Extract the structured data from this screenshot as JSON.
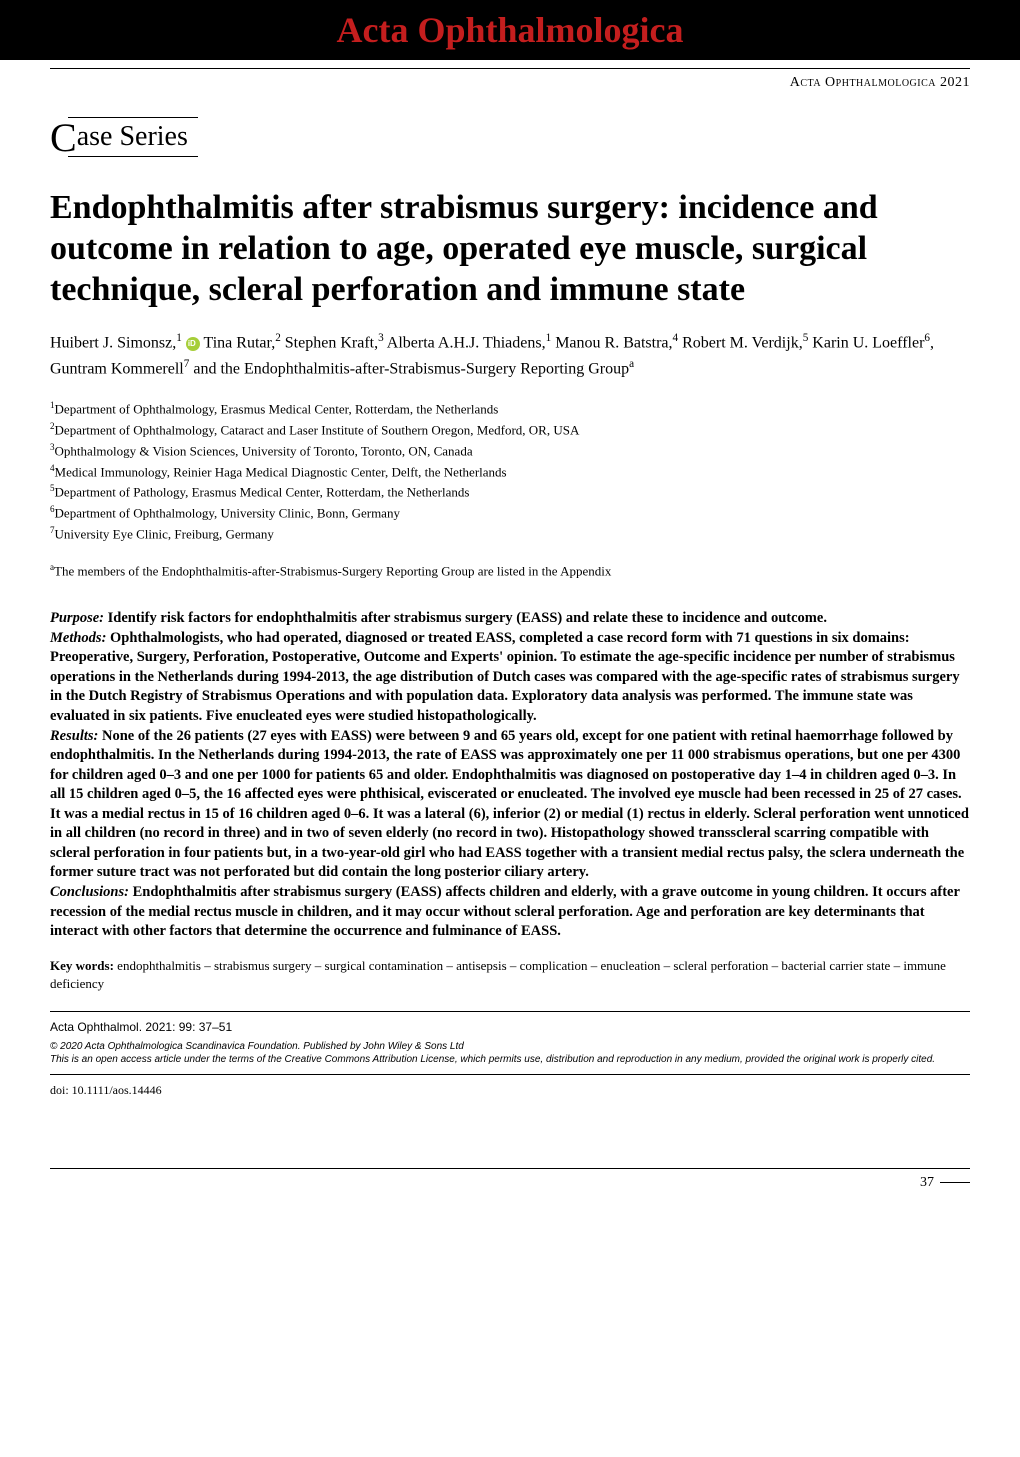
{
  "banner": {
    "text": "Acta Ophthalmologica"
  },
  "journal_header": "Acta Ophthalmologica 2021",
  "section_label": {
    "dropcap": "C",
    "rest": "ase Series"
  },
  "title": "Endophthalmitis after strabismus surgery: incidence and outcome in relation to age, operated eye muscle, surgical technique, scleral perforation and immune state",
  "authors_html": "Huibert J. Simonsz,<sup>1</sup> <span class='orcid'></span> Tina Rutar,<sup>2</sup> Stephen Kraft,<sup>3</sup> Alberta A.H.J. Thiadens,<sup>1</sup> Manou R. Batstra,<sup>4</sup> Robert M. Verdijk,<sup>5</sup> Karin U. Loeffler<sup>6</sup>, Guntram Kommerell<sup>7</sup> and the Endophthalmitis-after-Strabismus-Surgery Reporting Group<sup>a</sup>",
  "affiliations": [
    "<sup>1</sup>Department of Ophthalmology, Erasmus Medical Center, Rotterdam, the Netherlands",
    "<sup>2</sup>Department of Ophthalmology, Cataract and Laser Institute of Southern Oregon, Medford, OR, USA",
    "<sup>3</sup>Ophthalmology & Vision Sciences, University of Toronto, Toronto, ON, Canada",
    "<sup>4</sup>Medical Immunology, Reinier Haga Medical Diagnostic Center, Delft, the Netherlands",
    "<sup>5</sup>Department of Pathology, Erasmus Medical Center, Rotterdam, the Netherlands",
    "<sup>6</sup>Department of Ophthalmology, University Clinic, Bonn, Germany",
    "<sup>7</sup>University Eye Clinic, Freiburg, Germany"
  ],
  "group_note": "<sup>a</sup>The members of the Endophthalmitis-after-Strabismus-Surgery Reporting Group are listed in the Appendix",
  "abstract": {
    "purpose": {
      "heading": "Purpose:",
      "text": " Identify risk factors for endophthalmitis after strabismus surgery (EASS) and relate these to incidence and outcome."
    },
    "methods": {
      "heading": "Methods:",
      "text": " Ophthalmologists, who had operated, diagnosed or treated EASS, completed a case record form with 71 questions in six domains: Preoperative, Surgery, Perforation, Postoperative, Outcome and Experts' opinion. To estimate the age-specific incidence per number of strabismus operations in the Netherlands during 1994-2013, the age distribution of Dutch cases was compared with the age-specific rates of strabismus surgery in the Dutch Registry of Strabismus Operations and with population data. Exploratory data analysis was performed. The immune state was evaluated in six patients. Five enucleated eyes were studied histopathologically."
    },
    "results": {
      "heading": "Results:",
      "text": " None of the 26 patients (27 eyes with EASS) were between 9 and 65 years old, except for one patient with retinal haemorrhage followed by endophthalmitis. In the Netherlands during 1994-2013, the rate of EASS was approximately one per 11 000 strabismus operations, but one per 4300 for children aged 0–3 and one per 1000 for patients 65 and older. Endophthalmitis was diagnosed on postoperative day 1–4 in children aged 0–3. In all 15 children aged 0–5, the 16 affected eyes were phthisical, eviscerated or enucleated. The involved eye muscle had been recessed in 25 of 27 cases. It was a medial rectus in 15 of 16 children aged 0–6. It was a lateral (6), inferior (2) or medial (1) rectus in elderly. Scleral perforation went unnoticed in all children (no record in three) and in two of seven elderly (no record in two). Histopathology showed transscleral scarring compatible with scleral perforation in four patients but, in a two-year-old girl who had EASS together with a transient medial rectus palsy, the sclera underneath the former suture tract was not perforated but did contain the long posterior ciliary artery."
    },
    "conclusions": {
      "heading": "Conclusions:",
      "text": " Endophthalmitis after strabismus surgery (EASS) affects children and elderly, with a grave outcome in young children. It occurs after recession of the medial rectus muscle in children, and it may occur without scleral perforation. Age and perforation are key determinants that interact with other factors that determine the occurrence and fulminance of EASS."
    }
  },
  "keywords": {
    "label": "Key words:",
    "text": " endophthalmitis – strabismus surgery – surgical contamination – antisepsis – complication – enucleation – scleral perforation – bacterial carrier state – immune deficiency"
  },
  "citation": "Acta Ophthalmol. 2021: 99: 37–51",
  "copyright_line1": "© 2020 Acta Ophthalmologica Scandinavica Foundation. Published by John Wiley & Sons Ltd",
  "copyright_line2": "This is an open access article under the terms of the Creative Commons Attribution License, which permits use, distribution and reproduction in any medium, provided the original work is properly cited.",
  "doi": "doi: 10.1111/aos.14446",
  "page_number": "37"
}
